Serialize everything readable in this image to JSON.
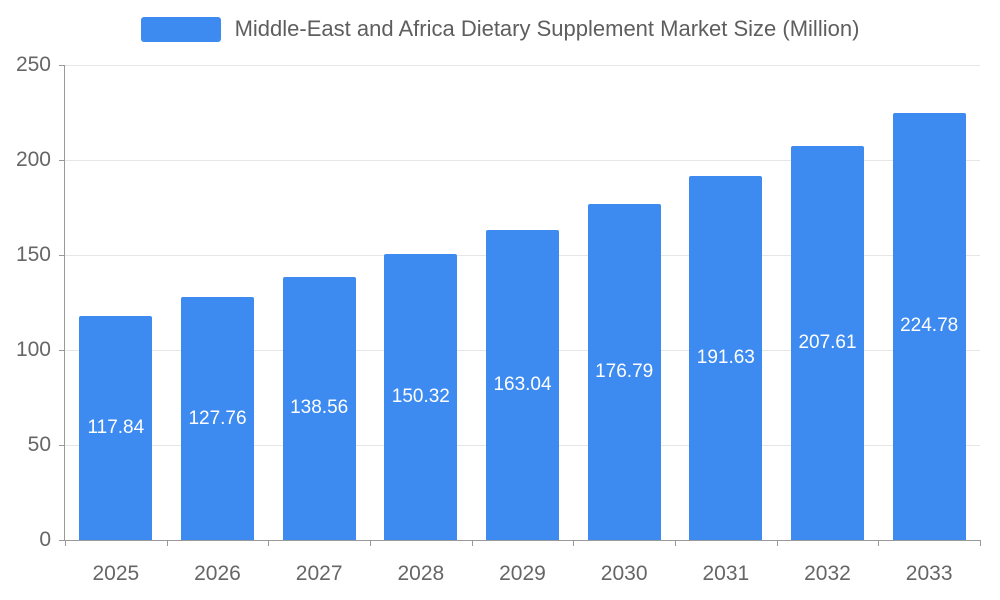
{
  "chart_data": {
    "type": "bar",
    "title": "Middle-East and Africa Dietary Supplement Market Size (Million)",
    "legend_entries": [
      "Middle-East and Africa Dietary Supplement Market Size (Million)"
    ],
    "legend_position": "top",
    "categories": [
      "2025",
      "2026",
      "2027",
      "2028",
      "2029",
      "2030",
      "2031",
      "2032",
      "2033"
    ],
    "values": [
      117.84,
      127.76,
      138.56,
      150.32,
      163.04,
      176.79,
      191.63,
      207.61,
      224.78
    ],
    "xlabel": "",
    "ylabel": "",
    "ylim": [
      0,
      250
    ],
    "yticks": [
      0,
      50,
      100,
      150,
      200,
      250
    ],
    "grid": true,
    "value_label_position": "inside-center",
    "colors": {
      "bar": "#3d8bf0",
      "value_label": "#ffffff",
      "axis_text": "#666666",
      "gridline": "#e6e6e6",
      "axis_line": "#999999"
    }
  }
}
